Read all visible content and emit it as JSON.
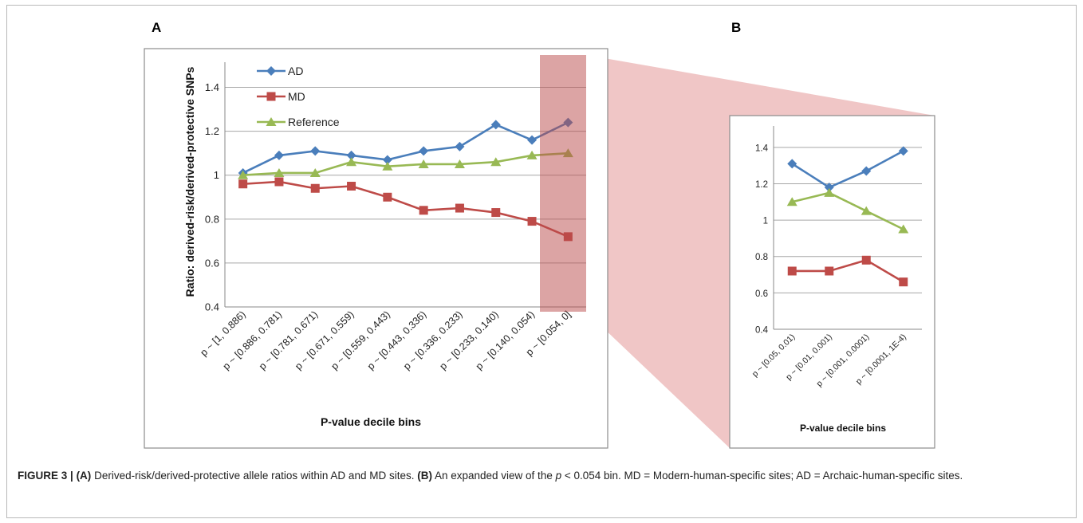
{
  "panels": [
    {
      "letter": "A",
      "chart_data": {
        "type": "line",
        "categories": [
          "p ~ [1, 0.886)",
          "p ~ [0.886, 0.781)",
          "p ~ [0.781, 0.671)",
          "p ~ [0.671, 0.559)",
          "p ~ [0.559, 0.443)",
          "p ~ [0.443, 0.336)",
          "p ~ [0.336, 0.233)",
          "p ~ [0.233, 0.140)",
          "p ~ [0.140, 0.054)",
          "p ~ [0.054, 0]"
        ],
        "series": [
          {
            "name": "AD",
            "color": "#4a7ebb",
            "marker": "diamond",
            "values": [
              1.01,
              1.09,
              1.11,
              1.09,
              1.07,
              1.11,
              1.13,
              1.23,
              1.16,
              1.24
            ]
          },
          {
            "name": "MD",
            "color": "#be4b48",
            "marker": "square",
            "values": [
              0.96,
              0.97,
              0.94,
              0.95,
              0.9,
              0.84,
              0.85,
              0.83,
              0.79,
              0.72
            ]
          },
          {
            "name": "Reference",
            "color": "#98b954",
            "marker": "triangle",
            "values": [
              1.0,
              1.01,
              1.01,
              1.06,
              1.04,
              1.05,
              1.05,
              1.06,
              1.09,
              1.1
            ]
          }
        ],
        "ylim": [
          0.4,
          1.5
        ],
        "yticks": [
          "0.4",
          "0.6",
          "0.8",
          "1",
          "1.2",
          "1.4"
        ],
        "xlabel": "P-value decile bins",
        "ylabel": "Ratio: derived-risk/derived-protective SNPs",
        "legend": "top-left",
        "grid": "horizontal"
      }
    },
    {
      "letter": "B",
      "chart_data": {
        "type": "line",
        "categories": [
          "p ~ [0.05, 0.01)",
          "p ~ [0.01, 0.001)",
          "p ~ [0.001, 0.0001)",
          "p ~ [0.0001, 1E-4)"
        ],
        "series": [
          {
            "name": "AD",
            "color": "#4a7ebb",
            "marker": "diamond",
            "values": [
              1.31,
              1.18,
              1.27,
              1.38
            ]
          },
          {
            "name": "MD",
            "color": "#be4b48",
            "marker": "square",
            "values": [
              0.72,
              0.72,
              0.78,
              0.66
            ]
          },
          {
            "name": "Reference",
            "color": "#98b954",
            "marker": "triangle",
            "values": [
              1.1,
              1.15,
              1.05,
              0.95
            ]
          }
        ],
        "ylim": [
          0.4,
          1.5
        ],
        "yticks": [
          "0.4",
          "0.6",
          "0.8",
          "1",
          "1.2",
          "1.4"
        ],
        "xlabel": "P-value decile bins",
        "grid": "horizontal"
      }
    }
  ],
  "caption": {
    "label": "FIGURE 3 |",
    "a_tag": "(A)",
    "a_text": " Derived-risk/derived-protective allele ratios within AD and MD sites. ",
    "b_tag": "(B)",
    "b_text_1": " An expanded view of the ",
    "b_var": "p",
    "b_text_2": " < 0.054 bin. MD = Modern-human-specific sites; AD = Archaic-human-specific sites."
  }
}
